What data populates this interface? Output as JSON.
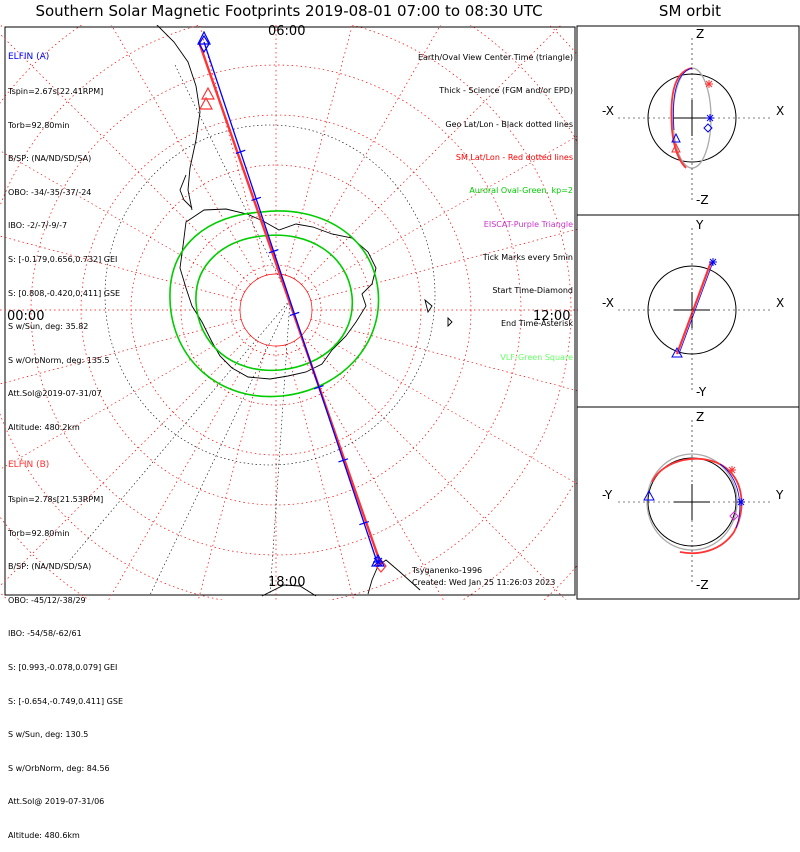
{
  "header": {
    "title": "Southern Solar Magnetic Footprints 2019-08-01 07:00 to 08:30 UTC",
    "orbit_title": "SM orbit"
  },
  "clock_labels": {
    "top": "06:00",
    "left": "00:00",
    "right": "12:00",
    "bottom": "18:00"
  },
  "elfin_a": {
    "title": "ELFIN (A)",
    "color": "#0000ff",
    "lines": [
      "Tspin=2.67s[22.41RPM]",
      "Torb=92.80min",
      "B/SP: (NA/ND/SD/SA)",
      "OBO: -34/-35/-37/-24",
      "IBO: -2/-7/-9/-7",
      "S: [-0.179,0.656,0.732] GEI",
      "S: [0.808,-0.420,0.411] GSE",
      "S w/Sun, deg: 35.82",
      "S w/OrbNorm, deg: 135.5",
      "Att.Sol@2019-07-31/07",
      "Altitude: 480.2km"
    ]
  },
  "elfin_b": {
    "title": "ELFIN (B)",
    "color": "#ff3333",
    "lines": [
      "Tspin=2.78s[21.53RPM]",
      "Torb=92.80min",
      "B/SP: (NA/ND/SD/SA)",
      "OBO: -45/12/-38/29",
      "IBO: -54/58/-62/61",
      "S: [0.993,-0.078,0.079] GEI",
      "S: [-0.654,-0.749,0.411] GSE",
      "S w/Sun, deg: 130.5",
      "S w/OrbNorm, deg: 84.56",
      "Att.Sol@ 2019-07-31/06",
      "Altitude: 480.6km"
    ]
  },
  "legend": [
    {
      "text": "Earth/Oval View Center Time (triangle)",
      "color": "#000000"
    },
    {
      "text": "Thick - Science (FGM and/or EPD)",
      "color": "#000000"
    },
    {
      "text": "Geo Lat/Lon - Black dotted lines",
      "color": "#000000"
    },
    {
      "text": "SM Lat/Lon - Red dotted lines",
      "color": "#ff0000"
    },
    {
      "text": "Auroral Oval-Green, kp=2",
      "color": "#00cc00"
    },
    {
      "text": "EISCAT-Purple Triangle",
      "color": "#cc33cc"
    },
    {
      "text": "Tick Marks every 5min",
      "color": "#000000"
    },
    {
      "text": "Start Time-Diamond",
      "color": "#000000"
    },
    {
      "text": "End Time-Asterisk",
      "color": "#000000"
    },
    {
      "text": "VLF-Green Square",
      "color": "#66ff66"
    }
  ],
  "credits": {
    "author": "Tsyganenko-1996",
    "created": "Created: Wed Jan 25 11:26:03 2023"
  },
  "orbit_panels": [
    {
      "top": "Z",
      "bottom": "-Z",
      "left": "-X",
      "right": "X"
    },
    {
      "top": "Y",
      "bottom": "-Y",
      "left": "-X",
      "right": "X"
    },
    {
      "top": "Z",
      "bottom": "-Z",
      "left": "-Y",
      "right": "Y"
    }
  ],
  "colors": {
    "sm_grid": "#ff0000",
    "geo_grid": "#000000",
    "oval": "#00cc00",
    "track_a": "#0000ff",
    "track_b": "#ff3333",
    "orbit_shadow": "#aaaaaa"
  }
}
